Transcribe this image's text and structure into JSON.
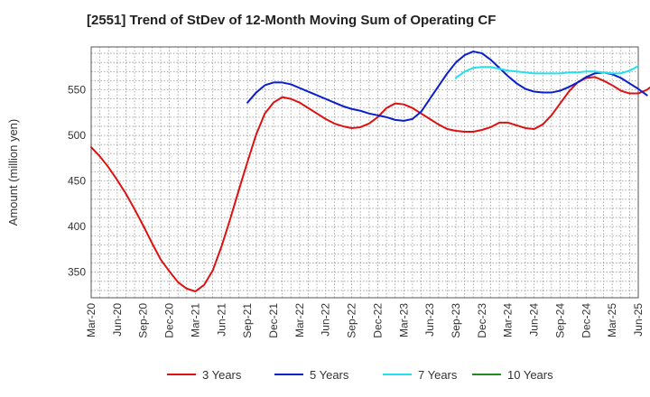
{
  "chart_data": {
    "type": "line",
    "title": "[2551]  Trend of StDev of 12-Month Moving Sum of Operating CF",
    "ylabel": "Amount (million yen)",
    "xlabel": "",
    "ylim": [
      322,
      597
    ],
    "yticks": [
      350,
      400,
      450,
      500,
      550
    ],
    "xticks": [
      "Mar-20",
      "Jun-20",
      "Sep-20",
      "Dec-20",
      "Mar-21",
      "Jun-21",
      "Sep-21",
      "Dec-21",
      "Mar-22",
      "Jun-22",
      "Sep-22",
      "Dec-22",
      "Mar-23",
      "Jun-23",
      "Sep-23",
      "Dec-23",
      "Mar-24",
      "Jun-24",
      "Sep-24",
      "Dec-24",
      "Mar-25",
      "Jun-25"
    ],
    "grid": true,
    "legend_position": "bottom",
    "series": [
      {
        "name": "3 Years",
        "color": "#dd1111",
        "start": "Mar-20",
        "values": [
          487,
          477,
          465,
          451,
          436,
          419,
          401,
          382,
          364,
          351,
          339,
          332,
          329,
          336,
          352,
          378,
          408,
          440,
          471,
          501,
          524,
          536,
          542,
          540,
          536,
          530,
          524,
          518,
          513,
          510,
          508,
          509,
          513,
          520,
          530,
          535,
          534,
          530,
          524,
          518,
          512,
          507,
          505,
          504,
          504,
          506,
          509,
          514,
          514,
          511,
          508,
          507,
          512,
          522,
          535,
          548,
          558,
          563,
          564,
          560,
          555,
          549,
          546,
          546,
          550,
          557
        ]
      },
      {
        "name": "5 Years",
        "color": "#0a1fcc",
        "start": "Sep-21",
        "values": [
          536,
          547,
          555,
          558,
          558,
          556,
          552,
          548,
          544,
          540,
          536,
          532,
          529,
          527,
          524,
          522,
          520,
          517,
          516,
          518,
          526,
          540,
          554,
          568,
          580,
          588,
          592,
          590,
          583,
          574,
          565,
          557,
          551,
          548,
          547,
          547,
          549,
          553,
          558,
          564,
          568,
          569,
          567,
          563,
          557,
          551,
          544
        ]
      },
      {
        "name": "7 Years",
        "color": "#22e0ee",
        "start": "Sep-23",
        "values": [
          563,
          570,
          574,
          575,
          575,
          573,
          571,
          570,
          569,
          568,
          568,
          568,
          568,
          569,
          569,
          570,
          570,
          569,
          568,
          568,
          571,
          576
        ]
      },
      {
        "name": "10 Years",
        "color": "#228b22",
        "start": "Mar-25",
        "values": []
      }
    ]
  }
}
